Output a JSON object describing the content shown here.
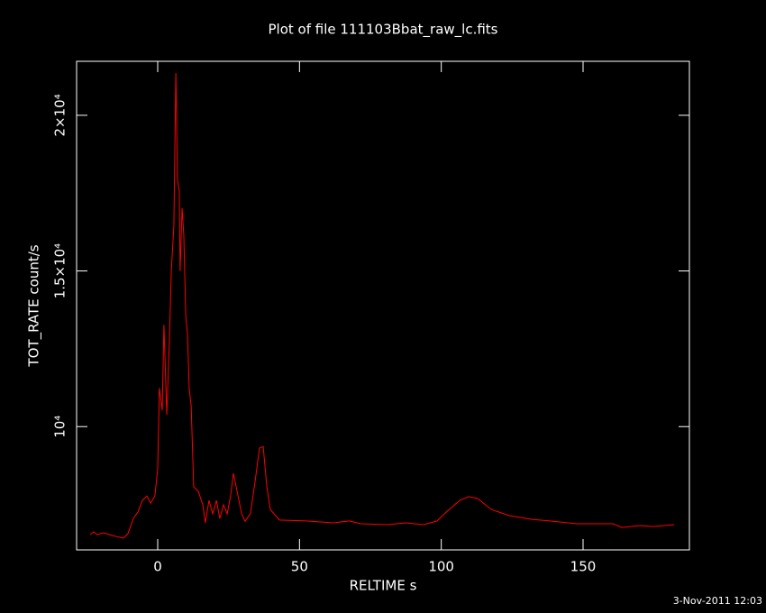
{
  "chart_data": {
    "type": "line",
    "title": "Plot of file 111103Bbat_raw_lc.fits",
    "x_label": "RELTIME  s",
    "y_label": "TOT_RATE  count/s",
    "footer": "3-Nov-2011 12:03",
    "color": "#ff0000",
    "xlim": [
      -28.6,
      187.5
    ],
    "ylim": [
      6040,
      21734
    ],
    "xticks": [
      0,
      50,
      100,
      150
    ],
    "yticks": [
      {
        "value": 10000,
        "label": "10⁴"
      },
      {
        "value": 15000,
        "label": "1.5×10⁴"
      },
      {
        "value": 20000,
        "label": "2×10⁴"
      }
    ],
    "x": [
      -23.8,
      -22.6,
      -21.3,
      -19.1,
      -15.9,
      -12.1,
      -10.5,
      -8.6,
      -7.0,
      -5.4,
      -3.8,
      -2.5,
      -1.0,
      0,
      0.6,
      1.6,
      2.2,
      3.2,
      4.1,
      4.8,
      5.7,
      6.4,
      7.0,
      7.6,
      7.9,
      8.6,
      9.2,
      9.9,
      10.5,
      11.1,
      11.8,
      12.7,
      14.3,
      15.9,
      16.8,
      18.1,
      19.4,
      20.7,
      21.9,
      23.2,
      24.5,
      25.7,
      26.7,
      28.0,
      29.6,
      30.8,
      32.7,
      34.3,
      35.9,
      37.2,
      38.5,
      39.7,
      42.9,
      52.4,
      61.9,
      67.7,
      71.5,
      81.1,
      87.4,
      93.8,
      98.5,
      101.7,
      106.5,
      109.7,
      112.8,
      117.6,
      124.0,
      131.9,
      138.3,
      147.8,
      160.5,
      163.7,
      170.1,
      174.8,
      182.1
    ],
    "values": [
      6532,
      6618,
      6532,
      6590,
      6500,
      6416,
      6560,
      7050,
      7250,
      7630,
      7770,
      7540,
      7770,
      8640,
      11240,
      10520,
      13270,
      10380,
      12690,
      15000,
      16450,
      21360,
      17890,
      17600,
      15000,
      17020,
      16160,
      13550,
      12980,
      11240,
      10660,
      8060,
      7920,
      7490,
      6910,
      7630,
      7200,
      7630,
      7050,
      7490,
      7200,
      7770,
      8500,
      7920,
      7200,
      6960,
      7200,
      8210,
      9310,
      9360,
      8060,
      7340,
      7000,
      6970,
      6910,
      6970,
      6880,
      6850,
      6910,
      6850,
      6970,
      7250,
      7630,
      7750,
      7690,
      7340,
      7140,
      7020,
      6970,
      6880,
      6880,
      6760,
      6820,
      6790,
      6850
    ]
  }
}
